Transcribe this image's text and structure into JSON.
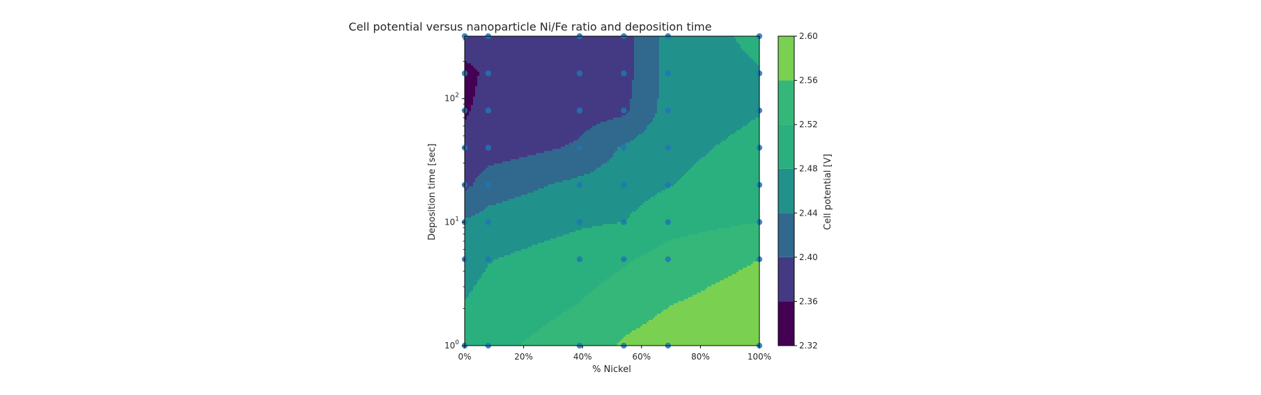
{
  "chart_data": {
    "type": "contour",
    "title": "Cell potential versus nanoparticle Ni/Fe ratio and deposition time",
    "xlabel": "% Nickel",
    "ylabel": "Deposition time [sec]",
    "colorbar_label": "Cell potential [V]",
    "x_scale": "linear",
    "y_scale": "log",
    "xlim": [
      0,
      100
    ],
    "ylim": [
      1,
      320
    ],
    "x_ticks": [
      0,
      20,
      40,
      60,
      80,
      100
    ],
    "x_tick_labels": [
      "0%",
      "20%",
      "40%",
      "60%",
      "80%",
      "100%"
    ],
    "y_ticks": [
      1,
      10,
      100
    ],
    "y_tick_bases": [
      "10",
      "10",
      "10"
    ],
    "y_tick_exps": [
      "0",
      "1",
      "2"
    ],
    "levels": [
      2.32,
      2.36,
      2.4,
      2.44,
      2.48,
      2.52,
      2.56,
      2.6
    ],
    "level_labels": [
      "2.32",
      "2.36",
      "2.40",
      "2.44",
      "2.48",
      "2.52",
      "2.56",
      "2.60"
    ],
    "colormap": [
      "#440154",
      "#443a83",
      "#31688e",
      "#21918c",
      "#2ab07f",
      "#35b779",
      "#7ad151",
      "#d8e219"
    ],
    "x": [
      0,
      8,
      39,
      54,
      69,
      100
    ],
    "y": [
      1,
      5,
      10,
      20,
      40,
      80,
      160,
      320
    ],
    "z": [
      [
        2.5,
        2.51,
        2.54,
        2.565,
        2.58,
        2.6
      ],
      [
        2.462,
        2.478,
        2.5,
        2.515,
        2.535,
        2.56
      ],
      [
        2.445,
        2.455,
        2.475,
        2.48,
        2.505,
        2.52
      ],
      [
        2.39,
        2.42,
        2.45,
        2.462,
        2.478,
        2.505
      ],
      [
        2.372,
        2.38,
        2.405,
        2.445,
        2.468,
        2.492
      ],
      [
        2.355,
        2.375,
        2.385,
        2.392,
        2.456,
        2.478
      ],
      [
        2.345,
        2.37,
        2.378,
        2.385,
        2.452,
        2.478
      ],
      [
        2.39,
        2.382,
        2.38,
        2.382,
        2.455,
        2.49
      ]
    ],
    "points": {
      "x": [
        0,
        8,
        39,
        54,
        69,
        100
      ],
      "y": [
        1,
        5,
        10,
        20,
        40,
        80,
        160,
        320
      ],
      "color": "#1f77b4"
    }
  }
}
